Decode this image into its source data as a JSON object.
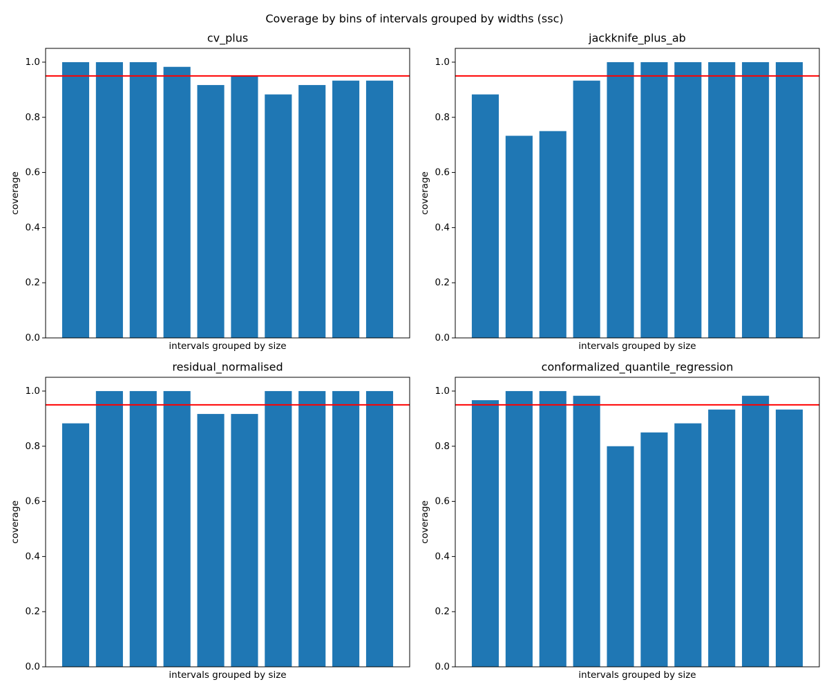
{
  "title": "Coverage by bins of intervals grouped by widths (ssc)",
  "chart_data": [
    {
      "type": "bar",
      "title": "cv_plus",
      "xlabel": "intervals grouped by size",
      "ylabel": "coverage",
      "categories": [
        null,
        null,
        null,
        null,
        null,
        null,
        null,
        null,
        null,
        null
      ],
      "values": [
        1.0,
        1.0,
        1.0,
        0.983,
        0.917,
        0.95,
        0.883,
        0.917,
        0.933,
        0.933
      ],
      "color": "#1f77b4",
      "ylim": [
        0,
        1.05
      ],
      "yticks": [
        {
          "value": 0,
          "label": "0.0"
        },
        0.2,
        0.4,
        0.6,
        0.8,
        {
          "value": 1,
          "label": "1.0"
        }
      ],
      "hline": 0.95,
      "hline_color": "#ff0000"
    },
    {
      "type": "bar",
      "title": "jackknife_plus_ab",
      "xlabel": "intervals grouped by size",
      "ylabel": "coverage",
      "categories": [
        null,
        null,
        null,
        null,
        null,
        null,
        null,
        null,
        null,
        null
      ],
      "values": [
        0.883,
        0.733,
        0.75,
        0.933,
        1.0,
        1.0,
        1.0,
        1.0,
        1.0,
        1.0
      ],
      "color": "#1f77b4",
      "ylim": [
        0,
        1.05
      ],
      "yticks": [
        {
          "value": 0,
          "label": "0.0"
        },
        0.2,
        0.4,
        0.6,
        0.8,
        {
          "value": 1,
          "label": "1.0"
        }
      ],
      "hline": 0.95,
      "hline_color": "#ff0000"
    },
    {
      "type": "bar",
      "title": "residual_normalised",
      "xlabel": "intervals grouped by size",
      "ylabel": "coverage",
      "categories": [
        null,
        null,
        null,
        null,
        null,
        null,
        null,
        null,
        null,
        null
      ],
      "values": [
        0.883,
        1.0,
        1.0,
        1.0,
        0.917,
        0.917,
        1.0,
        1.0,
        1.0,
        1.0
      ],
      "color": "#1f77b4",
      "ylim": [
        0,
        1.05
      ],
      "yticks": [
        {
          "value": 0,
          "label": "0.0"
        },
        0.2,
        0.4,
        0.6,
        0.8,
        {
          "value": 1,
          "label": "1.0"
        }
      ],
      "hline": 0.95,
      "hline_color": "#ff0000"
    },
    {
      "type": "bar",
      "title": "conformalized_quantile_regression",
      "xlabel": "intervals grouped by size",
      "ylabel": "coverage",
      "categories": [
        null,
        null,
        null,
        null,
        null,
        null,
        null,
        null,
        null,
        null
      ],
      "values": [
        0.967,
        1.0,
        1.0,
        0.983,
        0.8,
        0.85,
        0.883,
        0.933,
        0.983,
        0.933
      ],
      "color": "#1f77b4",
      "ylim": [
        0,
        1.05
      ],
      "yticks": [
        {
          "value": 0,
          "label": "0.0"
        },
        0.2,
        0.4,
        0.6,
        0.8,
        {
          "value": 1,
          "label": "1.0"
        }
      ],
      "hline": 0.95,
      "hline_color": "#ff0000"
    }
  ]
}
